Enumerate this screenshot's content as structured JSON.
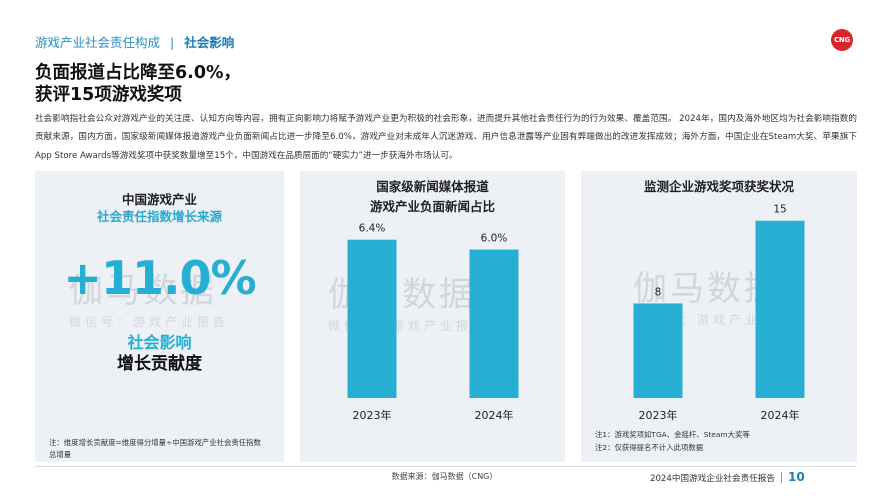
{
  "header": {
    "section": "游戏产业社会责任构成",
    "separator": "|",
    "current": "社会影响",
    "logo_text": "CNG"
  },
  "headline": [
    "负面报道占比降至6.0%，",
    "获评15项游戏奖项"
  ],
  "intro": "社会影响指社会公众对游戏产业的关注度、认知方向等内容，拥有正向影响力将赋予游戏产业更为积极的社会形象，进而提升其他社会责任行为的行为效果、覆盖范围。 2024年，国内及海外地区均为社会影响指数的贡献来源，国内方面，国家级新闻媒体报道游戏产业负面新闻占比进一步降至6.0%，游戏产业对未成年人沉迷游戏、用户信息泄露等产业固有弊端做出的改进发挥成效；海外方面，中国企业在Steam大奖、苹果旗下App Store Awards等游戏奖项中获奖数量增至15个，中国游戏在品质层面的“硬实力”进一步获海外市场认可。",
  "watermark": {
    "big": "伽马数据",
    "small": "微信号：游戏产业报告"
  },
  "panel1": {
    "title": "中国游戏产业",
    "subtitle": "社会责任指数增长来源",
    "value": "+11.0%",
    "label1": "社会影响",
    "label2": "增长贡献度",
    "note": "注：维度增长贡献度=维度得分增量÷中国游戏产业社会责任指数总增量"
  },
  "chart_data": [
    {
      "type": "bar",
      "title": "国家级新闻媒体报道\n游戏产业负面新闻占比",
      "categories": [
        "2023年",
        "2024年"
      ],
      "values": [
        6.4,
        6.0
      ],
      "data_labels": [
        "6.4%",
        "6.0%"
      ],
      "ylim": [
        0,
        7.6
      ],
      "color": "#27aed3"
    },
    {
      "type": "bar",
      "title": "监测企业游戏奖项获奖状况",
      "categories": [
        "2023年",
        "2024年"
      ],
      "values": [
        8,
        15
      ],
      "data_labels": [
        "8",
        "15"
      ],
      "ylim": [
        0,
        16.5
      ],
      "color": "#27aed3",
      "notes": [
        "注1：游戏奖项如TGA、金摇杆、Steam大奖等",
        "注2：仅获得提名不计入此项数据"
      ]
    }
  ],
  "footer": {
    "source": "数据来源：伽马数据（CNG）",
    "report": "2024中国游戏企业社会责任报告",
    "page": "10"
  }
}
